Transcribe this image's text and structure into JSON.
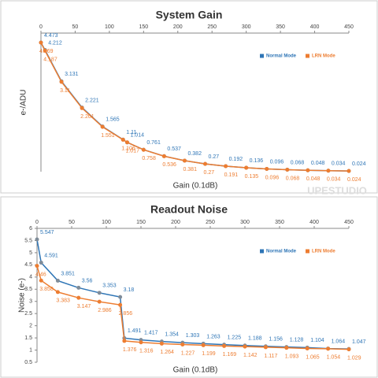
{
  "chart_data": [
    {
      "type": "line",
      "title": "System Gain",
      "y_label": "e-/ADU",
      "x_label": "Gain (0.1dB)",
      "x": [
        0,
        6,
        30,
        60,
        90,
        120,
        126,
        150,
        180,
        210,
        240,
        270,
        300,
        330,
        360,
        390,
        420,
        450
      ],
      "xlim": [
        0,
        450
      ],
      "xticks": [
        0,
        50,
        100,
        150,
        200,
        250,
        300,
        350,
        400,
        450
      ],
      "ylim": [
        0,
        4.8
      ],
      "grid": false,
      "legend": "upper right",
      "series": [
        {
          "name": "Normal Mode",
          "color": "#2e75b6",
          "values": [
            4.473,
            4.212,
            3.131,
            2.221,
            1.565,
            1.11,
            1.014,
            0.761,
            0.537,
            0.382,
            0.27,
            0.192,
            0.136,
            0.096,
            0.068,
            0.048,
            0.034,
            0.024
          ]
        },
        {
          "name": "LRN Mode",
          "color": "#ed7d31",
          "values": [
            4.469,
            4.187,
            3.11,
            2.201,
            1.551,
            1.106,
            1.017,
            0.758,
            0.536,
            0.381,
            0.27,
            0.191,
            0.135,
            0.096,
            0.068,
            0.048,
            0.034,
            0.024
          ]
        }
      ]
    },
    {
      "type": "line",
      "title": "Readout Noise",
      "y_label": "Noise (e-)",
      "x_label": "Gain (0.1dB)",
      "x": [
        0,
        6,
        30,
        60,
        90,
        120,
        126,
        150,
        180,
        210,
        240,
        270,
        300,
        330,
        360,
        390,
        420,
        450
      ],
      "xlim": [
        0,
        450
      ],
      "xticks": [
        0,
        50,
        100,
        150,
        200,
        250,
        300,
        350,
        400,
        450
      ],
      "ylim": [
        0.5,
        6
      ],
      "yticks": [
        0.5,
        1,
        1.5,
        2,
        2.5,
        3,
        3.5,
        4,
        4.5,
        5,
        5.5,
        6
      ],
      "grid": false,
      "legend": "upper right",
      "series": [
        {
          "name": "Normal Mode",
          "color": "#2e75b6",
          "values": [
            5.547,
            4.591,
            3.851,
            3.56,
            3.353,
            3.18,
            1.491,
            1.417,
            1.354,
            1.303,
            1.263,
            1.225,
            1.188,
            1.156,
            1.128,
            1.104,
            1.064,
            1.047
          ]
        },
        {
          "name": "LRN Mode",
          "color": "#ed7d31",
          "values": [
            4.46,
            3.858,
            3.383,
            3.147,
            2.986,
            2.856,
            1.376,
            1.316,
            1.264,
            1.227,
            1.199,
            1.169,
            1.142,
            1.117,
            1.093,
            1.065,
            1.054,
            1.029
          ]
        }
      ]
    }
  ],
  "watermark": "UPESTUDIO"
}
